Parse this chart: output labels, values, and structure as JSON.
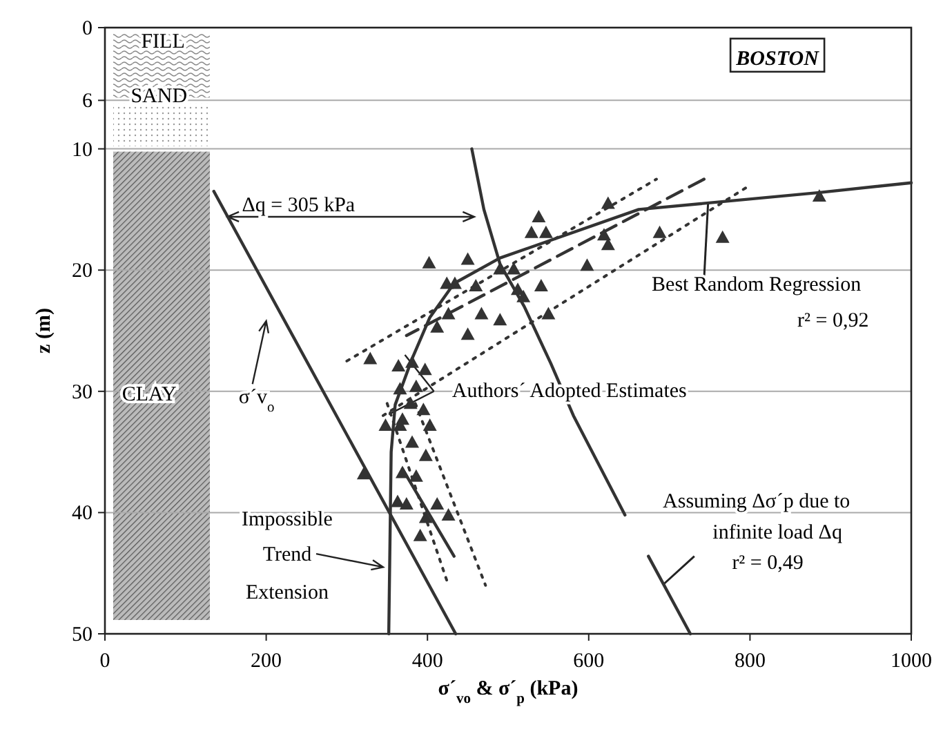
{
  "chart_data": {
    "type": "scatter",
    "xlabel": "σ´$_{vo}$ & σ´$_{p}$ (kPa)",
    "ylabel": "z (m)",
    "xlim": [
      0,
      1000
    ],
    "xticks": [
      0,
      200,
      400,
      600,
      800,
      1000
    ],
    "ylim": [
      50,
      0
    ],
    "yticks": [
      0,
      6,
      10,
      20,
      30,
      40,
      50
    ],
    "grid": "y",
    "marker": "triangle",
    "series": [
      {
        "color": "#333333",
        "x": [
          624,
          538,
          529,
          547,
          619,
          624,
          688,
          766,
          886,
          402,
          450,
          490,
          507,
          598,
          424,
          434,
          460,
          512,
          541,
          519,
          426,
          467,
          490,
          550,
          412,
          450,
          329,
          364,
          381,
          397,
          366,
          386,
          379,
          395,
          369,
          403,
          381,
          398,
          386,
          321,
          348,
          366,
          369,
          363,
          374,
          412,
          426,
          398,
          391
        ],
        "values": [
          14.5,
          15.6,
          16.9,
          16.9,
          17.1,
          17.9,
          16.9,
          17.3,
          13.9,
          19.4,
          19.1,
          19.9,
          19.9,
          19.6,
          21.1,
          21.1,
          21.3,
          21.6,
          21.3,
          22.2,
          23.6,
          23.6,
          24.1,
          23.6,
          24.7,
          25.3,
          27.3,
          27.9,
          27.6,
          28.2,
          29.8,
          29.6,
          31.0,
          31.5,
          32.3,
          32.8,
          34.2,
          35.3,
          37.0,
          36.8,
          32.8,
          32.8,
          36.7,
          39.1,
          39.3,
          39.3,
          40.2,
          40.4,
          41.9
        ]
      },
      {
        "type": "line",
        "color": "#333333",
        "marker": "none",
        "line_style": "solid",
        "x": [
          135,
          435
        ],
        "values": [
          13.5,
          50
        ]
      },
      {
        "type": "line",
        "color": "#333333",
        "marker": "none",
        "line_style": "solid",
        "x": [
          1000,
          886,
          662,
          490,
          433,
          403,
          381,
          360,
          355,
          352
        ],
        "values": [
          12.8,
          13.6,
          15.0,
          19.0,
          21.1,
          23.9,
          27.3,
          31.1,
          35,
          50
        ]
      },
      {
        "type": "line",
        "color": "#333333",
        "marker": "none",
        "line_style": "dashed",
        "x": [
          743,
          374
        ],
        "values": [
          12.5,
          25.4
        ]
      },
      {
        "type": "line",
        "color": "#333333",
        "marker": "none",
        "line_style": "solid",
        "x": [
          369,
          433
        ],
        "values": [
          36.4,
          43.6
        ]
      },
      {
        "type": "line",
        "color": "#333333",
        "marker": "none",
        "line_style": "dotted",
        "x": [
          300,
          684
        ],
        "values": [
          27.5,
          12.5
        ]
      },
      {
        "type": "line",
        "color": "#333333",
        "marker": "none",
        "line_style": "dotted",
        "x": [
          345,
          800
        ],
        "values": [
          32,
          13
        ]
      },
      {
        "type": "line",
        "color": "#333333",
        "marker": "none",
        "line_style": "dotted",
        "x": [
          350,
          426
        ],
        "values": [
          31,
          46
        ]
      },
      {
        "type": "line",
        "color": "#333333",
        "marker": "none",
        "line_style": "dotted",
        "x": [
          385,
          472
        ],
        "values": [
          31,
          46
        ]
      },
      {
        "type": "line",
        "color": "#333333",
        "marker": "none",
        "line_style": "solid",
        "x": [
          455,
          470,
          490,
          520,
          553,
          581,
          645,
          660,
          674,
          726
        ],
        "values": [
          10,
          15,
          19.5,
          23,
          27.7,
          32,
          40.2,
          null,
          43.6,
          50
        ]
      }
    ],
    "annotations": [
      "BOSTON",
      "FILL",
      "SAND",
      "CLAY",
      "σ´v$_{o}$",
      "Δq = 305 kPa",
      {
        "text": "Best Random Regression",
        "x": 748,
        "y": 14.5
      },
      "r² = 0,92",
      "Authors´ Adopted Estimates",
      "Assuming Δσ´p due to",
      {
        "text": "infinite load Δq",
        "x": 693,
        "y": 45.9
      },
      "r² = 0,49",
      "Impossible",
      "Trend",
      "Extension"
    ]
  }
}
